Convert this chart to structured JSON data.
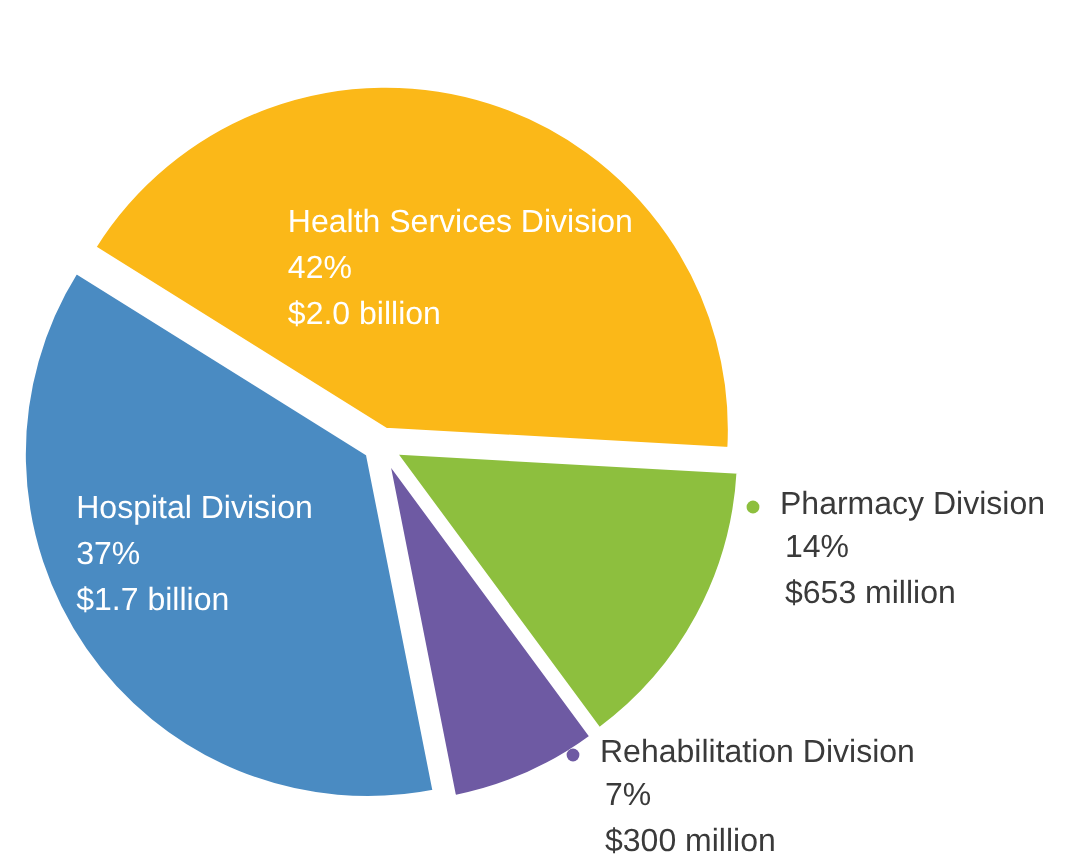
{
  "chart_data": {
    "type": "pie",
    "categories": [
      "Health Services Division",
      "Pharmacy Division",
      "Rehabilitation Division",
      "Hospital Division"
    ],
    "values": [
      42,
      14,
      7,
      37
    ],
    "colors": [
      "#fbb818",
      "#8dbf3e",
      "#6e5aa3",
      "#4a8bc2"
    ],
    "legend": "right",
    "value_labels": [
      "42%",
      "14%",
      "7%",
      "37%"
    ],
    "annotations": [
      {
        "text": "$2.0 billion",
        "x": "Health Services Division"
      },
      {
        "text": "$653 million",
        "x": "Pharmacy Division"
      },
      {
        "text": "$300 million",
        "x": "Rehabilitation Division"
      },
      {
        "text": "$1.7 billion",
        "x": "Hospital Division"
      }
    ]
  }
}
